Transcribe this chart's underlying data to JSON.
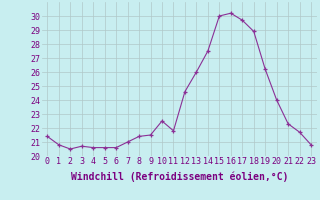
{
  "x": [
    0,
    1,
    2,
    3,
    4,
    5,
    6,
    7,
    8,
    9,
    10,
    11,
    12,
    13,
    14,
    15,
    16,
    17,
    18,
    19,
    20,
    21,
    22,
    23
  ],
  "y": [
    21.4,
    20.8,
    20.5,
    20.7,
    20.6,
    20.6,
    20.6,
    21.0,
    21.4,
    21.5,
    22.5,
    21.8,
    24.6,
    26.0,
    27.5,
    30.0,
    30.2,
    29.7,
    28.9,
    26.2,
    24.0,
    22.3,
    21.7,
    20.8
  ],
  "line_color": "#8b3096",
  "marker": "+",
  "marker_size": 3.5,
  "marker_color": "#8b3096",
  "bg_color": "#c8eef0",
  "grid_color": "#b0c8c8",
  "xlabel": "Windchill (Refroidissement éolien,°C)",
  "xlabel_fontsize": 7,
  "tick_fontsize": 6,
  "tick_color": "#7b0080",
  "ylim": [
    20,
    31
  ],
  "xlim": [
    -0.5,
    23.5
  ],
  "yticks": [
    20,
    21,
    22,
    23,
    24,
    25,
    26,
    27,
    28,
    29,
    30
  ],
  "xticks": [
    0,
    1,
    2,
    3,
    4,
    5,
    6,
    7,
    8,
    9,
    10,
    11,
    12,
    13,
    14,
    15,
    16,
    17,
    18,
    19,
    20,
    21,
    22,
    23
  ]
}
